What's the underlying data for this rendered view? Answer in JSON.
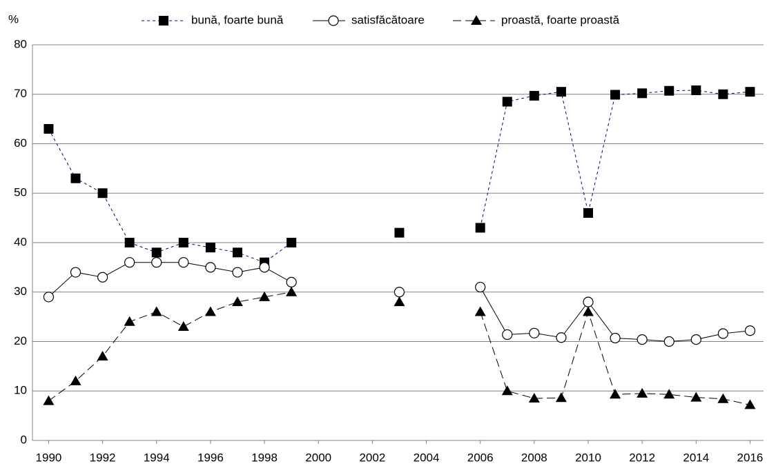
{
  "chart_data": {
    "type": "line",
    "y_label": "%",
    "x": [
      1990,
      1991,
      1992,
      1993,
      1994,
      1995,
      1996,
      1997,
      1998,
      1999,
      2000,
      2001,
      2002,
      2003,
      2004,
      2005,
      2006,
      2007,
      2008,
      2009,
      2010,
      2011,
      2012,
      2013,
      2014,
      2015,
      2016
    ],
    "series": [
      {
        "name": "bună, foarte bună",
        "color": "#000080",
        "marker": "square",
        "dash": "4,4",
        "values": [
          63,
          53,
          50,
          40,
          38,
          40,
          39,
          38,
          36,
          40,
          null,
          null,
          null,
          42,
          null,
          null,
          43,
          68.5,
          69.7,
          70.5,
          46,
          69.9,
          70.2,
          70.7,
          70.8,
          70.0,
          70.5
        ]
      },
      {
        "name": "satisfăcătoare",
        "color": "#000000",
        "marker": "circle",
        "dash": "none",
        "values": [
          29,
          34,
          33,
          36,
          36,
          36,
          35,
          34,
          35,
          32,
          null,
          null,
          null,
          30,
          null,
          null,
          31,
          21.4,
          21.7,
          20.8,
          28,
          20.7,
          20.4,
          20.0,
          20.4,
          21.6,
          22.2
        ]
      },
      {
        "name": "proastă, foarte proastă",
        "color": "#000000",
        "marker": "triangle",
        "dash": "12,6",
        "values": [
          8,
          12,
          17,
          24,
          26,
          23,
          26,
          28,
          29,
          30,
          null,
          null,
          null,
          28,
          null,
          null,
          26,
          10,
          8.5,
          8.6,
          26,
          9.3,
          9.5,
          9.3,
          8.7,
          8.4,
          7.2
        ]
      }
    ],
    "xlim": [
      1989.4,
      2016.5
    ],
    "xticks": [
      1990,
      1992,
      1994,
      1996,
      1998,
      2000,
      2002,
      2004,
      2006,
      2008,
      2010,
      2012,
      2014,
      2016
    ],
    "ylim": [
      0,
      80
    ],
    "yticks": [
      0,
      10,
      20,
      30,
      40,
      50,
      60,
      70,
      80
    ],
    "grid": true,
    "legend": "top"
  }
}
